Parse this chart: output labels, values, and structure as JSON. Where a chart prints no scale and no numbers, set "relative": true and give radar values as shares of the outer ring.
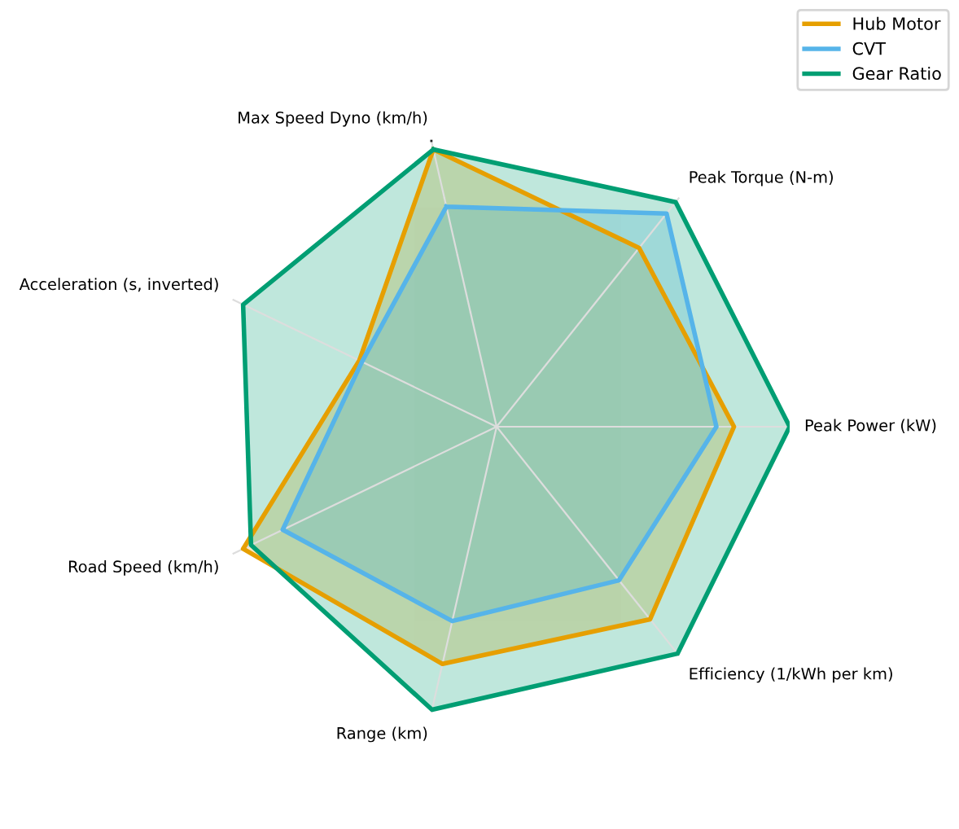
{
  "chart_data": {
    "type": "radar",
    "relative": true,
    "grid": true,
    "legend": "top right",
    "categories": [
      "Max Speed Dyno (km/h)",
      "Peak Torque (N-m)",
      "Peak Power (kW)",
      "Efficiency (1/kWh per km)",
      "Range (km)",
      "Road Speed (km/h)",
      "Acceleration (s, inverted)"
    ],
    "series": [
      {
        "name": "Hub Motor",
        "color": "#e69f00",
        "values": [
          0.97,
          0.78,
          0.81,
          0.84,
          0.83,
          0.96,
          0.52
        ]
      },
      {
        "name": "CVT",
        "color": "#56b4e9",
        "values": [
          0.77,
          0.93,
          0.75,
          0.67,
          0.68,
          0.81,
          0.51
        ]
      },
      {
        "name": "Gear Ratio",
        "color": "#009e73",
        "values": [
          0.97,
          0.98,
          1.0,
          0.99,
          0.99,
          0.93,
          0.96
        ]
      }
    ]
  }
}
